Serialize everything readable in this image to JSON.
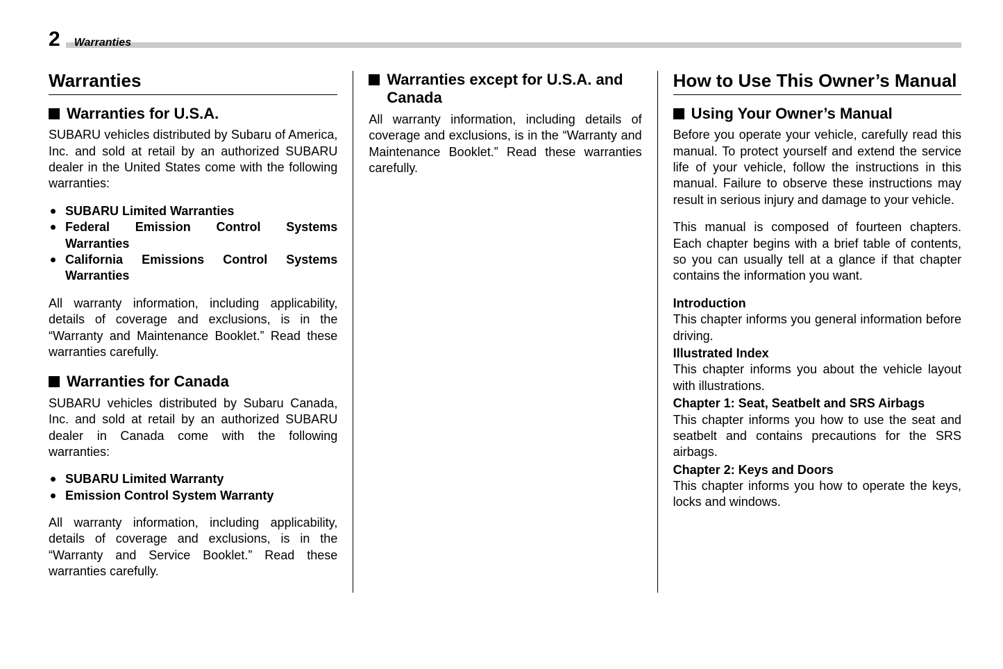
{
  "header": {
    "page_number": "2",
    "section_title": "Warranties"
  },
  "col1": {
    "title": "Warranties",
    "sec_usa": {
      "heading": "Warranties for U.S.A.",
      "intro": "SUBARU vehicles distributed by Subaru of America, Inc. and sold at retail by an authorized SUBARU dealer in the United States come with the following warranties:",
      "items": [
        "SUBARU Limited Warranties",
        "Federal Emission Control Systems Warranties",
        "California Emissions Control Systems Warranties"
      ],
      "footer": "All warranty information, including applicability, details of coverage and exclusions, is in the “Warranty and Maintenance Booklet.” Read these warranties carefully."
    },
    "sec_canada": {
      "heading": "Warranties for Canada",
      "intro": "SUBARU vehicles distributed by Subaru Canada, Inc. and sold at retail by an authorized SUBARU dealer in Canada come with the following warranties:",
      "items": [
        "SUBARU Limited Warranty",
        "Emission Control System Warranty"
      ],
      "footer": "All warranty information, including applicability, details of coverage and exclusions, is in the “Warranty and Service Booklet.” Read these warranties carefully."
    }
  },
  "col2": {
    "sec_other": {
      "heading": "Warranties except for U.S.A. and Canada",
      "body": "All warranty information, including details of coverage and exclusions, is in the “Warranty and Maintenance Booklet.” Read these warranties carefully."
    }
  },
  "col3": {
    "title": "How to Use This Owner’s Manual",
    "sec_using": {
      "heading": "Using Your Owner’s Manual",
      "p1": "Before you operate your vehicle, carefully read this manual. To protect yourself and extend the service life of your vehicle, follow the instructions in this manual. Failure to observe these instructions may result in serious injury and damage to your vehicle.",
      "p2": "This manual is composed of fourteen chapters. Each chapter begins with a brief table of contents, so you can usually tell at a glance if that chapter contains the information you want.",
      "chapters": [
        {
          "title": "Introduction",
          "desc": "This chapter informs you general information before driving."
        },
        {
          "title": "Illustrated Index",
          "desc": "This chapter informs you about the vehicle layout with illustrations."
        },
        {
          "title": "Chapter 1: Seat, Seatbelt and SRS Airbags",
          "desc": "This chapter informs you how to use the seat and seatbelt and contains precautions for the SRS airbags."
        },
        {
          "title": "Chapter 2: Keys and Doors",
          "desc": "This chapter informs you how to operate the keys, locks and windows."
        }
      ]
    }
  }
}
